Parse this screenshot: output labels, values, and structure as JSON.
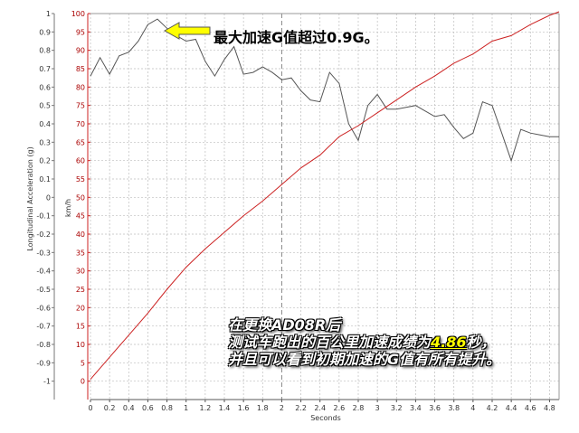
{
  "chart_data": {
    "type": "line",
    "xlabel": "Seconds",
    "y_left_label": "Longitudinal Acceleration (g)",
    "y_right_label": "km/h",
    "xlim": [
      0,
      4.9
    ],
    "x_ticks": [
      "0",
      "0.2",
      "0.4",
      "0.6",
      "0.8",
      "1",
      "1.2",
      "1.4",
      "1.6",
      "1.8",
      "2",
      "2.2",
      "2.4",
      "2.6",
      "2.8",
      "3",
      "3.2",
      "3.4",
      "3.6",
      "3.8",
      "4",
      "4.2",
      "4.4",
      "4.6",
      "4.8"
    ],
    "y_left_ticks": [
      "1",
      "0.9",
      "0.8",
      "0.7",
      "0.6",
      "0.5",
      "0.4",
      "0.3",
      "0.2",
      "0.1",
      "0",
      "-0.1",
      "-0.2",
      "-0.3",
      "-0.4",
      "-0.5",
      "-0.6",
      "-0.7",
      "-0.8",
      "-0.9",
      "-1"
    ],
    "y_left_lim": [
      -1.1,
      1.0
    ],
    "y_right_ticks": [
      "100",
      "95",
      "90",
      "85",
      "80",
      "75",
      "70",
      "65",
      "60",
      "55",
      "50",
      "45",
      "40",
      "35",
      "30",
      "25",
      "20",
      "15",
      "10",
      "5",
      "0"
    ],
    "y_right_lim": [
      -5,
      100
    ],
    "grid": true,
    "series": [
      {
        "axis": "left",
        "color": "#555555",
        "x": [
          0,
          0.1,
          0.2,
          0.3,
          0.4,
          0.5,
          0.6,
          0.7,
          0.8,
          0.9,
          1.0,
          1.1,
          1.2,
          1.3,
          1.4,
          1.5,
          1.6,
          1.7,
          1.8,
          1.9,
          2.0,
          2.1,
          2.2,
          2.3,
          2.4,
          2.5,
          2.6,
          2.7,
          2.8,
          2.9,
          3.0,
          3.1,
          3.2,
          3.3,
          3.4,
          3.5,
          3.6,
          3.7,
          3.8,
          3.9,
          4.0,
          4.1,
          4.2,
          4.3,
          4.4,
          4.5,
          4.6,
          4.7,
          4.8,
          4.9
        ],
        "values": [
          0.66,
          0.76,
          0.67,
          0.77,
          0.79,
          0.85,
          0.94,
          0.97,
          0.92,
          0.88,
          0.85,
          0.86,
          0.74,
          0.66,
          0.75,
          0.82,
          0.67,
          0.68,
          0.71,
          0.68,
          0.64,
          0.65,
          0.58,
          0.53,
          0.52,
          0.68,
          0.62,
          0.4,
          0.31,
          0.5,
          0.56,
          0.48,
          0.48,
          0.49,
          0.5,
          0.47,
          0.44,
          0.45,
          0.38,
          0.32,
          0.35,
          0.52,
          0.5,
          0.35,
          0.2,
          0.37,
          0.35,
          0.34,
          0.33,
          0.33
        ]
      },
      {
        "axis": "right",
        "color": "#cc2222",
        "x": [
          0,
          0.2,
          0.4,
          0.6,
          0.8,
          1.0,
          1.2,
          1.4,
          1.6,
          1.8,
          2.0,
          2.2,
          2.4,
          2.6,
          2.8,
          3.0,
          3.2,
          3.4,
          3.6,
          3.8,
          4.0,
          4.2,
          4.4,
          4.6,
          4.8,
          4.9
        ],
        "values": [
          0.5,
          6.5,
          12.5,
          18.5,
          25,
          31,
          36,
          40.5,
          45,
          49,
          53.5,
          58,
          61.5,
          66.5,
          69.5,
          73,
          76.5,
          80,
          83,
          86.5,
          89,
          92.5,
          94,
          97,
          99.5,
          100.5
        ]
      }
    ]
  },
  "annotations": {
    "peak_note": "最大加速G值超过0.9G。",
    "summary_line1": "在更换AD08R后",
    "summary_line2_pre": "测试车跑出的百公里加速成绩为",
    "summary_time": "4.86",
    "summary_line2_post": "秒，",
    "summary_line3": "并且可以看到初期加速的G值有所有提升。",
    "arrow_color": "#ffff00"
  }
}
